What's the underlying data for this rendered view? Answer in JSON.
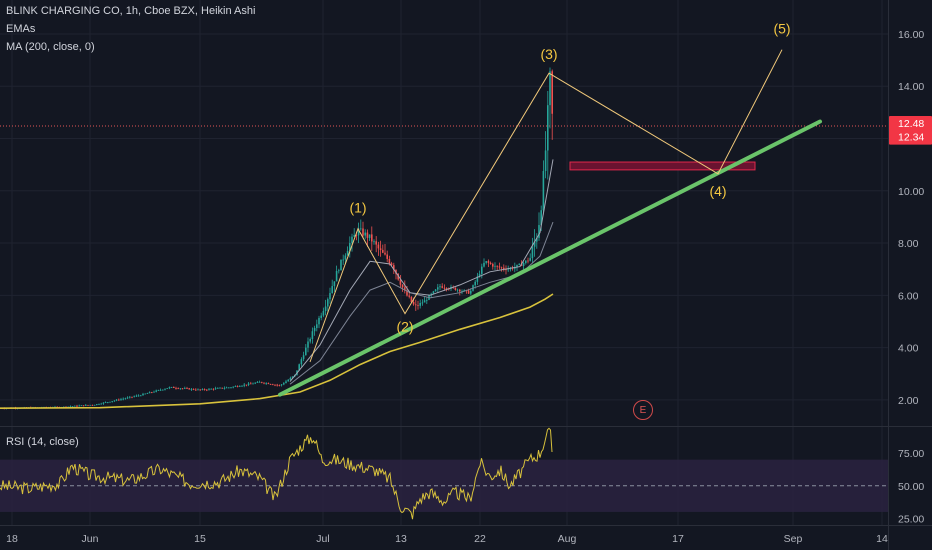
{
  "header": {
    "symbol_line": "BLINK CHARGING CO, 1h, Cboe BZX, Heikin Ashi",
    "indicator_1": "EMAs",
    "indicator_2": "MA (200, close, 0)"
  },
  "rsi_panel": {
    "title": "RSI (14, close)"
  },
  "event_badge": "E",
  "colors": {
    "background": "#131722",
    "grid": "#1f2330",
    "up_candle": "#26a69a",
    "down_candle": "#ef5350",
    "wave_line": "#f0c87a",
    "trendline": "#6ac46a",
    "ma200": "#d8c23c",
    "rsi_line": "#d8c23c",
    "rsi_band": "#2a2240",
    "price_line": "#e05555"
  },
  "chart_data": {
    "type": "candlestick",
    "title": "BLINK CHARGING CO, 1h, Cboe BZX, Heikin Ashi",
    "x_ticks": [
      "18",
      "Jun",
      "15",
      "Jul",
      "13",
      "22",
      "Aug",
      "17",
      "Sep",
      "14"
    ],
    "y_ticks": [
      "16.00",
      "14.00",
      "12.00",
      "10.00",
      "8.00",
      "6.00",
      "4.00",
      "2.00"
    ],
    "ylim": [
      1.0,
      17.3
    ],
    "price_labels": [
      {
        "label": "12.48",
        "value": 12.48
      },
      {
        "label": "12.34",
        "value": 12.34
      }
    ],
    "price_series": [
      [
        0,
        1.68
      ],
      [
        60,
        1.72
      ],
      [
        95,
        1.82
      ],
      [
        120,
        2.02
      ],
      [
        140,
        2.18
      ],
      [
        170,
        2.48
      ],
      [
        200,
        2.38
      ],
      [
        230,
        2.48
      ],
      [
        260,
        2.68
      ],
      [
        280,
        2.55
      ],
      [
        295,
        2.95
      ],
      [
        305,
        3.9
      ],
      [
        315,
        4.8
      ],
      [
        325,
        5.6
      ],
      [
        338,
        7.0
      ],
      [
        350,
        8.0
      ],
      [
        358,
        8.5
      ],
      [
        370,
        8.2
      ],
      [
        380,
        7.7
      ],
      [
        392,
        7.2
      ],
      [
        405,
        6.1
      ],
      [
        415,
        5.55
      ],
      [
        425,
        5.8
      ],
      [
        440,
        6.35
      ],
      [
        455,
        6.25
      ],
      [
        470,
        6.1
      ],
      [
        485,
        7.3
      ],
      [
        495,
        7.1
      ],
      [
        508,
        7.0
      ],
      [
        520,
        7.15
      ],
      [
        530,
        7.4
      ],
      [
        538,
        8.5
      ],
      [
        542,
        9.8
      ],
      [
        545,
        11.2
      ],
      [
        548,
        13.0
      ],
      [
        550,
        14.2
      ],
      [
        553,
        12.3
      ]
    ],
    "ma200": [
      [
        0,
        1.68
      ],
      [
        100,
        1.7
      ],
      [
        200,
        1.85
      ],
      [
        260,
        2.05
      ],
      [
        300,
        2.3
      ],
      [
        330,
        2.75
      ],
      [
        360,
        3.35
      ],
      [
        390,
        3.85
      ],
      [
        420,
        4.2
      ],
      [
        460,
        4.7
      ],
      [
        500,
        5.15
      ],
      [
        530,
        5.55
      ],
      [
        545,
        5.85
      ],
      [
        553,
        6.05
      ]
    ],
    "ema_fast": [
      [
        290,
        2.7
      ],
      [
        320,
        4.1
      ],
      [
        350,
        6.2
      ],
      [
        370,
        7.3
      ],
      [
        390,
        7.2
      ],
      [
        410,
        6.1
      ],
      [
        430,
        6.0
      ],
      [
        460,
        6.4
      ],
      [
        490,
        6.9
      ],
      [
        520,
        7.1
      ],
      [
        540,
        8.4
      ],
      [
        553,
        11.2
      ]
    ],
    "ema_slow": [
      [
        290,
        2.6
      ],
      [
        320,
        3.5
      ],
      [
        350,
        5.2
      ],
      [
        370,
        6.2
      ],
      [
        390,
        6.5
      ],
      [
        410,
        6.1
      ],
      [
        430,
        5.9
      ],
      [
        460,
        6.1
      ],
      [
        490,
        6.5
      ],
      [
        520,
        6.8
      ],
      [
        540,
        7.5
      ],
      [
        553,
        8.8
      ]
    ],
    "trendline": {
      "from": [
        280,
        2.2
      ],
      "to": [
        820,
        12.65
      ]
    },
    "elliott_waves": [
      {
        "label": "(1)",
        "x": 358,
        "price": 8.55
      },
      {
        "label": "(2)",
        "x": 405,
        "price": 5.3
      },
      {
        "label": "(3)",
        "x": 549,
        "price": 14.5
      },
      {
        "label": "(4)",
        "x": 718,
        "price": 10.65
      },
      {
        "label": "(5)",
        "x": 782,
        "price": 15.4
      }
    ],
    "wave_start": {
      "x": 310,
      "price": 3.45
    },
    "target_box": {
      "x0": 570,
      "x1": 755,
      "p_top": 11.1,
      "p_bottom": 10.8
    },
    "rsi": {
      "title": "RSI (14, close)",
      "y_ticks": [
        "75.00",
        "50.00",
        "25.00"
      ],
      "ylim": [
        20,
        95
      ],
      "band": [
        30,
        70
      ],
      "midline": 50,
      "values": [
        [
          0,
          50
        ],
        [
          30,
          48
        ],
        [
          60,
          52
        ],
        [
          72,
          65
        ],
        [
          90,
          58
        ],
        [
          110,
          56
        ],
        [
          130,
          54
        ],
        [
          160,
          63
        ],
        [
          190,
          52
        ],
        [
          220,
          53
        ],
        [
          240,
          62
        ],
        [
          260,
          56
        ],
        [
          275,
          40
        ],
        [
          290,
          70
        ],
        [
          303,
          82
        ],
        [
          313,
          88
        ],
        [
          322,
          70
        ],
        [
          335,
          70
        ],
        [
          360,
          65
        ],
        [
          375,
          62
        ],
        [
          390,
          55
        ],
        [
          400,
          35
        ],
        [
          412,
          28
        ],
        [
          420,
          40
        ],
        [
          430,
          45
        ],
        [
          445,
          38
        ],
        [
          455,
          45
        ],
        [
          470,
          40
        ],
        [
          480,
          68
        ],
        [
          490,
          57
        ],
        [
          500,
          62
        ],
        [
          510,
          50
        ],
        [
          520,
          60
        ],
        [
          530,
          70
        ],
        [
          540,
          75
        ],
        [
          546,
          88
        ],
        [
          550,
          92
        ],
        [
          553,
          70
        ]
      ]
    }
  }
}
